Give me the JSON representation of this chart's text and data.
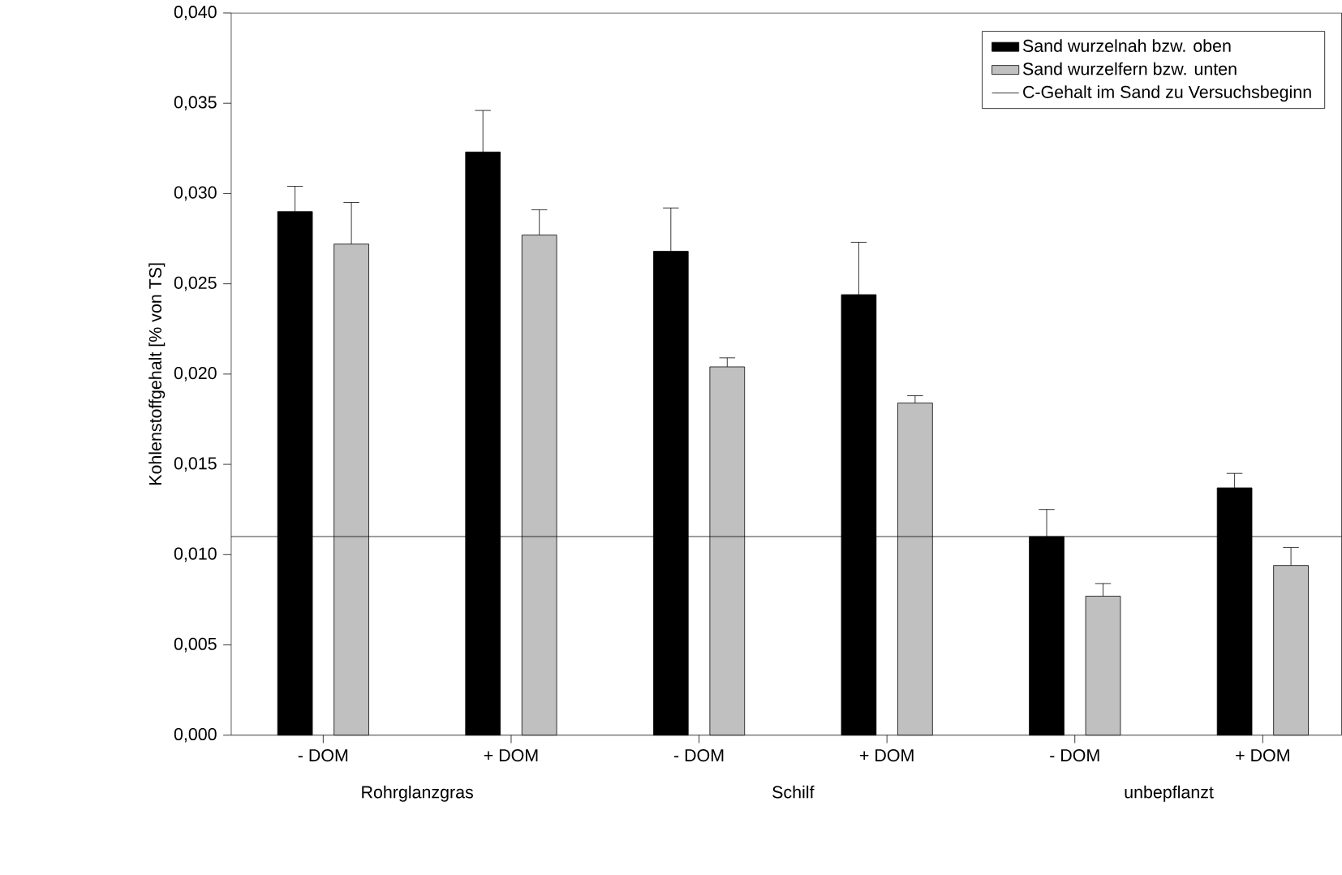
{
  "chart_data": {
    "type": "bar",
    "ylabel": "Kohlenstoffgehalt [% von TS]",
    "categories": [
      "- DOM",
      "+ DOM",
      "- DOM",
      "+ DOM",
      "- DOM",
      "+ DOM"
    ],
    "series": [
      {
        "name": "Sand wurzelnah bzw. oben",
        "color": "#000000",
        "values": [
          0.029,
          0.0323,
          0.0268,
          0.0244,
          0.011,
          0.0137
        ],
        "errors": [
          [
            0.029,
            0.0304
          ],
          [
            0.0323,
            0.0346
          ],
          [
            0.0268,
            0.0292
          ],
          [
            0.0244,
            0.0273
          ],
          [
            0.011,
            0.0125
          ],
          [
            0.0137,
            0.0145
          ]
        ]
      },
      {
        "name": "Sand wurzelfern bzw. unten",
        "color": "#c0c0c0",
        "values": [
          0.0272,
          0.0277,
          0.0204,
          0.0184,
          0.0077,
          0.0094
        ],
        "errors": [
          [
            0.0272,
            0.0295
          ],
          [
            0.0277,
            0.0291
          ],
          [
            0.0204,
            0.0209
          ],
          [
            0.0184,
            0.0188
          ],
          [
            0.0077,
            0.0084
          ],
          [
            0.0094,
            0.0104
          ]
        ]
      }
    ],
    "ref_lines": [
      {
        "axis": "y",
        "value": 0.011,
        "label": "C-Gehalt im Sand zu Versuchsbeginn",
        "color": "#000000"
      }
    ],
    "annotations": [
      "Rohrglanzgras",
      "Schilf",
      "unbepflanzt"
    ],
    "ylim": [
      0,
      0.04
    ],
    "yticks": [
      {
        "value": 0,
        "label": "0,000"
      },
      {
        "value": 0.005,
        "label": "0,005"
      },
      {
        "value": 0.01,
        "label": "0,010"
      },
      {
        "value": 0.015,
        "label": "0,015"
      },
      {
        "value": 0.02,
        "label": "0,020"
      },
      {
        "value": 0.025,
        "label": "0,025"
      },
      {
        "value": 0.03,
        "label": "0,030"
      },
      {
        "value": 0.035,
        "label": "0,035"
      },
      {
        "value": 0.04,
        "label": "0,040"
      }
    ],
    "legend": "top right",
    "grid": false
  }
}
